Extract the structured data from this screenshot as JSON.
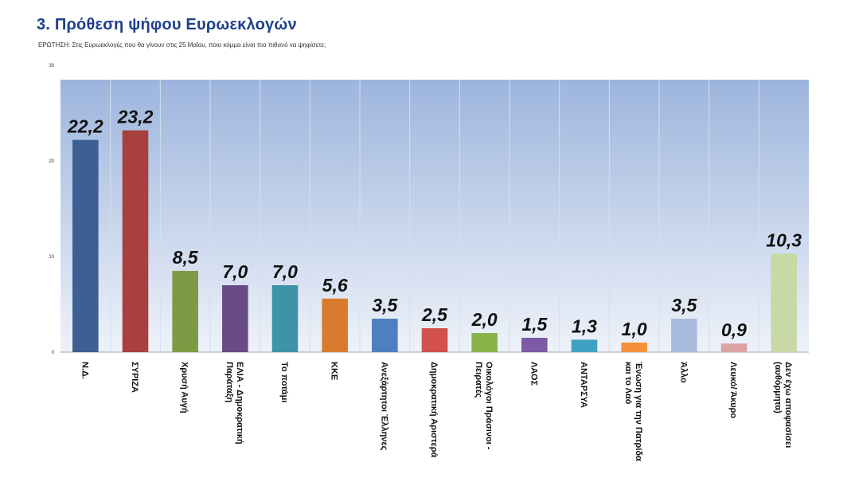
{
  "title": "3. Πρόθεση ψήφου Ευρωεκλογών",
  "question": "ΕΡΩΤΗΣΗ: Στις Ευρωεκλογές που θα γίνουν στις 25 Μαΐου, ποιο κόμμα είναι πιο πιθανό να ψηφίσετε;",
  "chart_data": {
    "type": "bar",
    "categories": [
      [
        "Ν.Δ."
      ],
      [
        "ΣΥΡΙΖΑ"
      ],
      [
        "Χρυσή Αυγή"
      ],
      [
        "ΕΛΙΑ - Δημοκρατική",
        "Παράταξη"
      ],
      [
        "Το ποτάμι"
      ],
      [
        "ΚΚΕ"
      ],
      [
        "Ανεξάρτητοι Έλληνες"
      ],
      [
        "Δημοκρατική Αριστερά"
      ],
      [
        "Οικολόγοι Πράσινοι -",
        "Πειρατές"
      ],
      [
        "ΛΑΟΣ"
      ],
      [
        "ΑΝΤΑΡΣΥΑ"
      ],
      [
        "Ένωση για την Πατρίδα",
        "και το Λαό"
      ],
      [
        "Άλλο"
      ],
      [
        "Λευκό/ Άκυρο"
      ],
      [
        "Δεν έχω αποφασίσει",
        "(αυθόρμητα)"
      ]
    ],
    "values": [
      22.2,
      23.2,
      8.5,
      7.0,
      7.0,
      5.6,
      3.5,
      2.5,
      2.0,
      1.5,
      1.3,
      1.0,
      3.5,
      0.9,
      10.3
    ],
    "value_labels": [
      "22,2",
      "23,2",
      "8,5",
      "7,0",
      "7,0",
      "5,6",
      "3,5",
      "2,5",
      "2,0",
      "1,5",
      "1,3",
      "1,0",
      "3,5",
      "0,9",
      "10,3"
    ],
    "colors": [
      "#3d5f94",
      "#a8403f",
      "#7f9a44",
      "#6a4b86",
      "#3f93a6",
      "#d97b2e",
      "#4f7fc0",
      "#d2504e",
      "#8ab34a",
      "#7d5aa5",
      "#3ea3c2",
      "#f4923a",
      "#a9bbdc",
      "#dca3a3",
      "#c8d9a6"
    ],
    "ylim": [
      0,
      30
    ],
    "yticks": [
      "0",
      "10",
      "20",
      "30"
    ],
    "grid": false
  }
}
